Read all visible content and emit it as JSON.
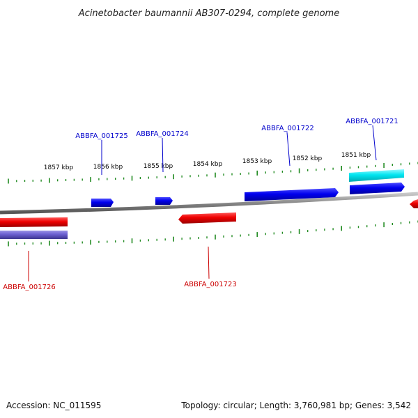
{
  "title": "Acinetobacter baumannii AB307-0294, complete genome",
  "footer": {
    "accession": "Accession: NC_011595",
    "info": "Topology: circular; Length: 3,760,981 bp; Genes: 3,542"
  },
  "colors": {
    "forward_gene": "#0000ee",
    "reverse_gene": "#ee0000",
    "cds_light": "#00e5f0",
    "reverse_light": "#6a5fd0",
    "backbone": "#888888",
    "tick": "#228b22",
    "forward_label": "#0000cc",
    "reverse_label": "#cc0000"
  },
  "ruler": {
    "tick_labels": [
      "1857 kbp",
      "1856 kbp",
      "1855 kbp",
      "1854 kbp",
      "1853 kbp",
      "1852 kbp",
      "1851 kbp"
    ]
  },
  "genes": {
    "labels": [
      "ABBFA_001725",
      "ABBFA_001724",
      "ABBFA_001722",
      "ABBFA_001721",
      "ABBFA_001726",
      "ABBFA_001723"
    ]
  }
}
